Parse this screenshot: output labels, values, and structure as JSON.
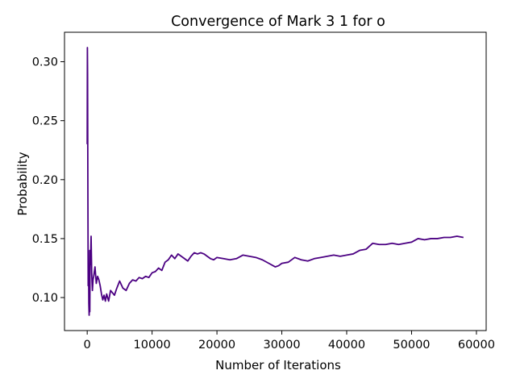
{
  "chart_data": {
    "type": "line",
    "title": "Convergence of Mark 3 1 for o",
    "xlabel": "Number of Iterations",
    "ylabel": "Probability",
    "xlim": [
      -3500,
      61500
    ],
    "ylim": [
      0.072,
      0.325
    ],
    "xticks": [
      0,
      10000,
      20000,
      30000,
      40000,
      50000,
      60000
    ],
    "xtick_labels": [
      "0",
      "10000",
      "20000",
      "30000",
      "40000",
      "50000",
      "60000"
    ],
    "yticks": [
      0.1,
      0.15,
      0.2,
      0.25,
      0.3
    ],
    "ytick_labels": [
      "0.10",
      "0.15",
      "0.20",
      "0.25",
      "0.30"
    ],
    "grid": false,
    "series": [
      {
        "color": "#4b0082",
        "x": [
          0,
          30,
          60,
          100,
          150,
          200,
          250,
          300,
          350,
          400,
          450,
          500,
          600,
          700,
          800,
          900,
          1000,
          1200,
          1400,
          1600,
          1800,
          2000,
          2200,
          2400,
          2600,
          2800,
          3000,
          3300,
          3600,
          3900,
          4200,
          4500,
          5000,
          5500,
          6000,
          6500,
          7000,
          7500,
          8000,
          8500,
          9000,
          9500,
          10000,
          10500,
          11000,
          11500,
          12000,
          12500,
          13000,
          13500,
          14000,
          14500,
          15000,
          15500,
          16000,
          16500,
          17000,
          17500,
          18000,
          18500,
          19000,
          19500,
          20000,
          21000,
          22000,
          23000,
          24000,
          25000,
          26000,
          27000,
          28000,
          29000,
          29500,
          30000,
          31000,
          32000,
          33000,
          34000,
          35000,
          36000,
          37000,
          38000,
          39000,
          40000,
          41000,
          42000,
          43000,
          44000,
          45000,
          46000,
          47000,
          48000,
          49000,
          50000,
          51000,
          52000,
          53000,
          54000,
          55000,
          56000,
          57000,
          58000
        ],
        "y": [
          0.23,
          0.312,
          0.29,
          0.2,
          0.11,
          0.14,
          0.095,
          0.085,
          0.098,
          0.088,
          0.14,
          0.128,
          0.152,
          0.12,
          0.106,
          0.115,
          0.118,
          0.126,
          0.112,
          0.118,
          0.115,
          0.11,
          0.103,
          0.098,
          0.102,
          0.097,
          0.103,
          0.097,
          0.106,
          0.104,
          0.102,
          0.107,
          0.114,
          0.108,
          0.106,
          0.112,
          0.115,
          0.114,
          0.117,
          0.116,
          0.118,
          0.117,
          0.121,
          0.122,
          0.125,
          0.123,
          0.13,
          0.132,
          0.136,
          0.133,
          0.137,
          0.135,
          0.133,
          0.131,
          0.135,
          0.138,
          0.137,
          0.138,
          0.137,
          0.135,
          0.133,
          0.132,
          0.134,
          0.133,
          0.132,
          0.133,
          0.136,
          0.135,
          0.134,
          0.132,
          0.129,
          0.126,
          0.127,
          0.129,
          0.13,
          0.134,
          0.132,
          0.131,
          0.133,
          0.134,
          0.135,
          0.136,
          0.135,
          0.136,
          0.137,
          0.14,
          0.141,
          0.146,
          0.145,
          0.145,
          0.146,
          0.145,
          0.146,
          0.147,
          0.15,
          0.149,
          0.15,
          0.15,
          0.151,
          0.151,
          0.152,
          0.151
        ]
      }
    ]
  }
}
